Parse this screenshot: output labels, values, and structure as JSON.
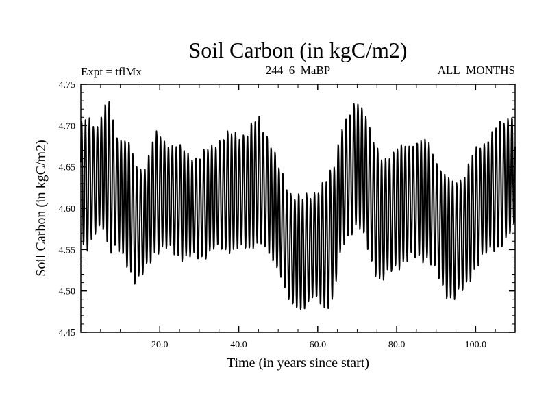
{
  "chart_data": {
    "type": "line",
    "title": "Soil Carbon (in kgC/m2)",
    "subtitle_left": "Expt = tflMx",
    "subtitle_center": "244_6_MaBP",
    "subtitle_right": "ALL_MONTHS",
    "xlabel": "Time (in years since start)",
    "ylabel": "Soil Carbon (in kgC/m2)",
    "xlim": [
      0,
      110
    ],
    "ylim": [
      4.45,
      4.75
    ],
    "x_ticks": [
      20,
      40,
      60,
      80,
      100
    ],
    "x_tick_labels": [
      "20.0",
      "40.0",
      "60.0",
      "80.0",
      "100.0"
    ],
    "y_ticks": [
      4.45,
      4.5,
      4.55,
      4.6,
      4.65,
      4.7,
      4.75
    ],
    "y_tick_labels": [
      "4.45",
      "4.50",
      "4.55",
      "4.60",
      "4.65",
      "4.70",
      "4.75"
    ],
    "grid": false,
    "line_color": "#000000",
    "series": [
      {
        "cycle_period_years": 1,
        "annual_envelope": {
          "x": [
            0,
            2,
            4,
            6,
            7,
            9,
            12,
            14,
            16,
            19,
            22,
            26,
            30,
            34,
            38,
            42,
            45,
            48,
            50,
            53,
            56,
            59,
            62,
            64,
            66,
            68,
            70,
            72,
            74,
            76,
            80,
            84,
            88,
            92,
            94,
            97,
            100,
            104,
            108,
            110
          ],
          "max": [
            4.7,
            4.71,
            4.7,
            4.72,
            4.73,
            4.69,
            4.68,
            4.65,
            4.65,
            4.69,
            4.68,
            4.67,
            4.66,
            4.68,
            4.69,
            4.69,
            4.71,
            4.68,
            4.65,
            4.62,
            4.61,
            4.62,
            4.63,
            4.65,
            4.7,
            4.71,
            4.73,
            4.72,
            4.68,
            4.66,
            4.67,
            4.68,
            4.68,
            4.64,
            4.63,
            4.64,
            4.67,
            4.69,
            4.71,
            4.72
          ],
          "min": [
            4.56,
            4.55,
            4.57,
            4.58,
            4.55,
            4.55,
            4.53,
            4.51,
            4.52,
            4.55,
            4.55,
            4.54,
            4.54,
            4.55,
            4.55,
            4.55,
            4.56,
            4.54,
            4.53,
            4.48,
            4.48,
            4.49,
            4.48,
            4.49,
            4.55,
            4.57,
            4.58,
            4.56,
            4.53,
            4.51,
            4.53,
            4.54,
            4.54,
            4.5,
            4.49,
            4.5,
            4.53,
            4.55,
            4.56,
            4.58
          ]
        }
      }
    ]
  }
}
